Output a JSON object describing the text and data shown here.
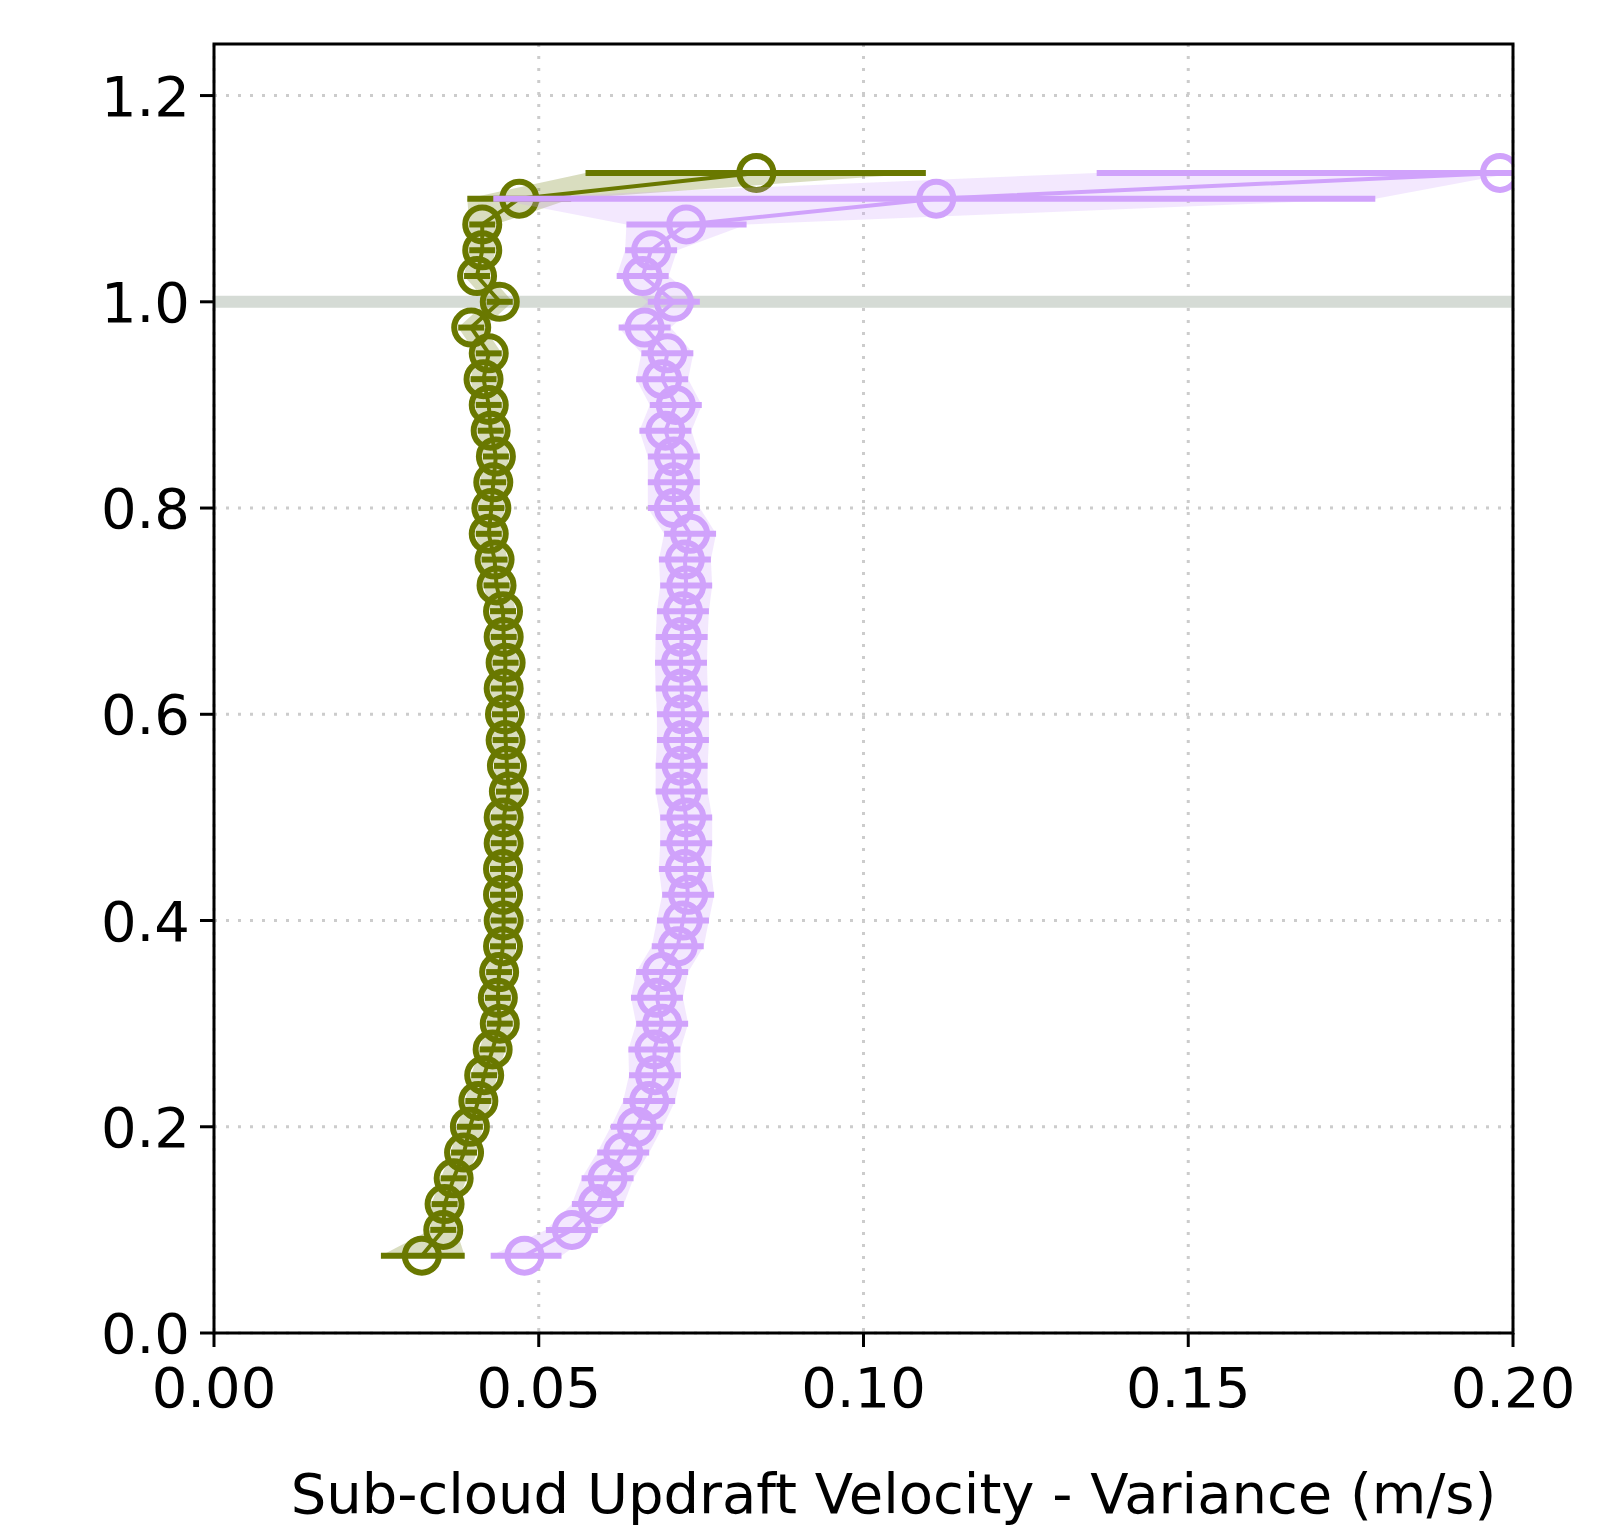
{
  "chart_data": {
    "type": "line",
    "orientation": "horizontal",
    "xlabel": "Sub-cloud Updraft Velocity - Variance (m/s)",
    "x": [
      0.075,
      0.1,
      0.125,
      0.15,
      0.175,
      0.2,
      0.225,
      0.25,
      0.275,
      0.3,
      0.325,
      0.35,
      0.375,
      0.4,
      0.425,
      0.45,
      0.475,
      0.5,
      0.525,
      0.55,
      0.575,
      0.6,
      0.625,
      0.65,
      0.675,
      0.7,
      0.725,
      0.75,
      0.775,
      0.8,
      0.825,
      0.85,
      0.875,
      0.9,
      0.925,
      0.95,
      0.975,
      1.0,
      1.025,
      1.05,
      1.075,
      1.1,
      1.125
    ],
    "series": [
      {
        "color": "#697800",
        "values": [
          0.032,
          0.0353,
          0.0355,
          0.0369,
          0.0385,
          0.0394,
          0.0407,
          0.0416,
          0.0429,
          0.044,
          0.0437,
          0.0439,
          0.0445,
          0.0446,
          0.0445,
          0.0445,
          0.0446,
          0.0446,
          0.0454,
          0.0451,
          0.0449,
          0.0448,
          0.0446,
          0.0449,
          0.0446,
          0.0445,
          0.0435,
          0.0432,
          0.0423,
          0.0427,
          0.043,
          0.0434,
          0.0426,
          0.0423,
          0.0415,
          0.0423,
          0.0396,
          0.044,
          0.0405,
          0.0413,
          0.0413,
          0.047,
          0.0835
        ],
        "errors": [
          [
            0.0257,
            0.0386
          ],
          0.002,
          0.002,
          0.002,
          0.002,
          0.002,
          0.002,
          0.002,
          0.002,
          0.002,
          0.002,
          0.002,
          0.002,
          0.002,
          0.002,
          0.002,
          0.002,
          0.002,
          0.002,
          0.002,
          0.002,
          0.002,
          0.002,
          0.002,
          0.002,
          0.002,
          0.002,
          0.002,
          0.002,
          0.002,
          0.002,
          0.002,
          0.002,
          0.002,
          0.002,
          0.002,
          0.002,
          0.002,
          0.002,
          0.002,
          0.002,
          [
            0.039,
            0.055
          ],
          [
            0.0572,
            0.1096
          ]
        ],
        "lower": [
          0.0257,
          0.0333,
          0.0335,
          0.0349,
          0.0365,
          0.0374,
          0.0387,
          0.0396,
          0.0409,
          0.042,
          0.0417,
          0.0419,
          0.0425,
          0.0426,
          0.0425,
          0.0425,
          0.0426,
          0.0426,
          0.0434,
          0.0431,
          0.0429,
          0.0428,
          0.0426,
          0.0429,
          0.0426,
          0.0425,
          0.0415,
          0.0412,
          0.0403,
          0.0407,
          0.041,
          0.0414,
          0.0406,
          0.0403,
          0.0395,
          0.0403,
          0.0376,
          0.042,
          0.0385,
          0.0393,
          0.0393,
          0.039,
          0.0572
        ],
        "upper": [
          0.0386,
          0.0373,
          0.0375,
          0.0389,
          0.0405,
          0.0414,
          0.0427,
          0.0436,
          0.0449,
          0.046,
          0.0457,
          0.0459,
          0.0465,
          0.0466,
          0.0465,
          0.0465,
          0.0466,
          0.0466,
          0.0474,
          0.0471,
          0.0469,
          0.0468,
          0.0466,
          0.0469,
          0.0466,
          0.0465,
          0.0455,
          0.0452,
          0.0443,
          0.0447,
          0.045,
          0.0454,
          0.0446,
          0.0443,
          0.0435,
          0.0443,
          0.0416,
          0.046,
          0.0425,
          0.0433,
          0.0433,
          0.055,
          0.1096
        ]
      },
      {
        "color": "#d0a2fb",
        "values": [
          0.0478,
          0.0551,
          0.0591,
          0.0606,
          0.063,
          0.0651,
          0.067,
          0.0679,
          0.0678,
          0.069,
          0.0682,
          0.069,
          0.0714,
          0.0722,
          0.073,
          0.0725,
          0.0727,
          0.0727,
          0.072,
          0.072,
          0.0722,
          0.0722,
          0.072,
          0.0719,
          0.072,
          0.0722,
          0.0727,
          0.0725,
          0.0733,
          0.0708,
          0.0708,
          0.0708,
          0.0695,
          0.0711,
          0.069,
          0.0698,
          0.0663,
          0.0708,
          0.066,
          0.0673,
          0.0727,
          0.1112,
          0.198
        ],
        "errors": [
          [
            0.0426,
            0.0535
          ],
          0.004,
          0.004,
          0.004,
          0.004,
          0.004,
          0.004,
          0.004,
          0.004,
          0.004,
          0.004,
          0.004,
          0.004,
          0.004,
          0.004,
          0.004,
          0.004,
          0.004,
          0.004,
          0.004,
          0.004,
          0.004,
          0.004,
          0.004,
          0.004,
          0.004,
          0.004,
          0.004,
          0.004,
          0.004,
          0.004,
          0.004,
          0.004,
          0.004,
          0.004,
          0.004,
          0.004,
          0.004,
          0.004,
          0.004,
          [
            0.0635,
            0.082
          ],
          [
            0.043,
            0.1788
          ],
          [
            0.1359,
            0.2
          ]
        ],
        "lower": [
          0.0426,
          0.0511,
          0.0551,
          0.0566,
          0.059,
          0.0611,
          0.063,
          0.0639,
          0.0638,
          0.065,
          0.0642,
          0.065,
          0.0674,
          0.0682,
          0.069,
          0.0685,
          0.0687,
          0.0687,
          0.068,
          0.068,
          0.0682,
          0.0682,
          0.068,
          0.0679,
          0.068,
          0.0682,
          0.0687,
          0.0685,
          0.0693,
          0.0668,
          0.0668,
          0.0668,
          0.0655,
          0.0671,
          0.065,
          0.0658,
          0.0623,
          0.0668,
          0.062,
          0.0633,
          0.0635,
          0.043,
          0.1359
        ],
        "upper": [
          0.0535,
          0.0591,
          0.0631,
          0.0646,
          0.067,
          0.0691,
          0.071,
          0.0719,
          0.0718,
          0.073,
          0.0722,
          0.073,
          0.0754,
          0.0762,
          0.077,
          0.0765,
          0.0767,
          0.0767,
          0.076,
          0.076,
          0.0762,
          0.0762,
          0.076,
          0.0759,
          0.076,
          0.0762,
          0.0767,
          0.0765,
          0.0773,
          0.0748,
          0.0748,
          0.0748,
          0.0735,
          0.0751,
          0.073,
          0.0738,
          0.0703,
          0.0748,
          0.07,
          0.0713,
          0.082,
          0.1788,
          0.2
        ]
      }
    ],
    "xlim": [
      0,
      0.2
    ],
    "xticks": [
      {
        "value": 0,
        "label": "0.00"
      },
      0.05,
      {
        "value": 0.1,
        "label": "0.10"
      },
      0.15,
      {
        "value": 0.2,
        "label": "0.20"
      }
    ],
    "ylim": [
      0,
      1.25
    ],
    "yticks": [
      {
        "value": 0,
        "label": "0.0"
      },
      0.2,
      0.4,
      0.6,
      0.8,
      {
        "value": 1,
        "label": "1.0"
      },
      1.2
    ],
    "grid": true,
    "marker": "circle",
    "line_style": "solid",
    "ref_lines": [
      {
        "axis": "y",
        "value": 1,
        "color": "#d5dbd5"
      }
    ]
  }
}
